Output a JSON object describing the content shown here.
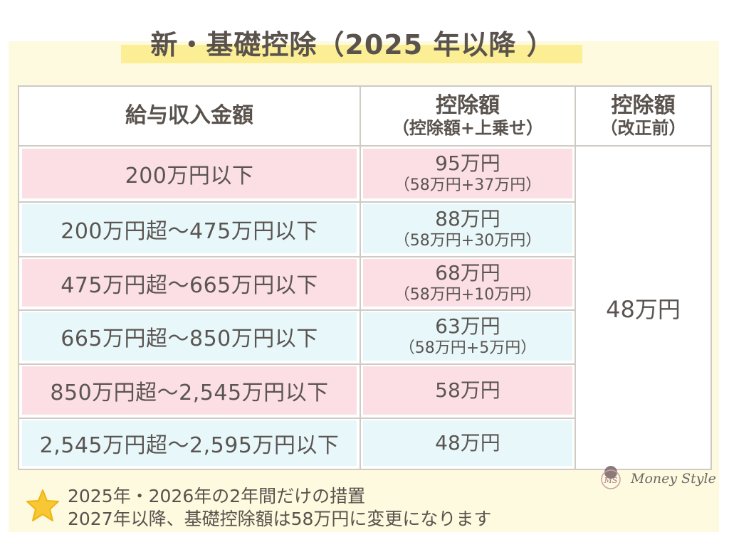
{
  "title": "新・基礎控除（2025 年以降 ）",
  "table": {
    "headers": {
      "income": "給与収入金額",
      "new_main": "控除額",
      "new_sub": "（控除額+上乗せ）",
      "old_main": "控除額",
      "old_sub": "（改正前）"
    },
    "rows": [
      {
        "income": "200万円以下",
        "deduction": "95万円",
        "breakdown": "（58万円+37万円）",
        "tone": "pink"
      },
      {
        "income": "200万円超～475万円以下",
        "deduction": "88万円",
        "breakdown": "（58万円+30万円）",
        "tone": "blue"
      },
      {
        "income": "475万円超～665万円以下",
        "deduction": "68万円",
        "breakdown": "（58万円+10万円）",
        "tone": "pink"
      },
      {
        "income": "665万円超～850万円以下",
        "deduction": "63万円",
        "breakdown": "（58万円+5万円）",
        "tone": "blue"
      },
      {
        "income": "850万円超～2,545万円以下",
        "deduction": "58万円",
        "breakdown": "",
        "tone": "pink"
      },
      {
        "income": "2,545万円超～2,595万円以下",
        "deduction": "48万円",
        "breakdown": "",
        "tone": "blue"
      }
    ],
    "old_value": "48万円"
  },
  "notes": {
    "line1": "2025年・2026年の2年間だけの措置",
    "line2": "2027年以降、基礎控除額は58万円に変更になります",
    "icon": "star-icon"
  },
  "logo": {
    "text": "Money Style",
    "mark": "MS"
  },
  "colors": {
    "background": "#fdfadf",
    "highlight": "#fbee94",
    "pink_row": "#fbdfe5",
    "blue_row": "#e8f8fa",
    "border": "#cfcac3",
    "text": "#5b5551",
    "star": "#f7c734"
  }
}
